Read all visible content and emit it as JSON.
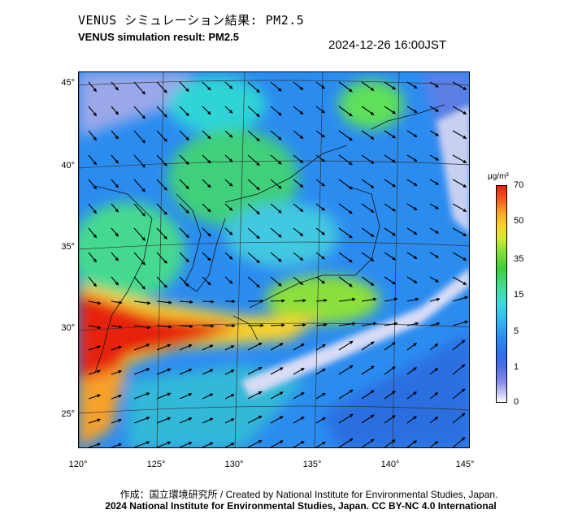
{
  "title_ja": "VENUS シミュレーション結果: PM2.5",
  "title_en": "VENUS simulation result: PM2.5",
  "timestamp": "2024-12-26 16:00JST",
  "lat_labels": [
    "45°",
    "40°",
    "35°",
    "30°",
    "25°"
  ],
  "lon_labels": [
    "120°",
    "125°",
    "130°",
    "135°",
    "140°",
    "145°"
  ],
  "colorbar": {
    "unit": "μg/m³",
    "labels": [
      "70",
      "50",
      "35",
      "15",
      "5",
      "1",
      "0"
    ],
    "colors": [
      "#ffffff",
      "#8a8ee8",
      "#2e6ee8",
      "#34b8f2",
      "#44d990",
      "#8be03a",
      "#f7d12e",
      "#e62310"
    ]
  },
  "credit_ja": "作成：国立環境研究所 / Created by National Institute for Environmental Studies, Japan.",
  "credit_en": "2024 National Institute for Environmental Studies, Japan. CC BY-NC 4.0 International",
  "colors": {
    "sea_low": "#2b8cf0",
    "land_high": "#e62310"
  }
}
